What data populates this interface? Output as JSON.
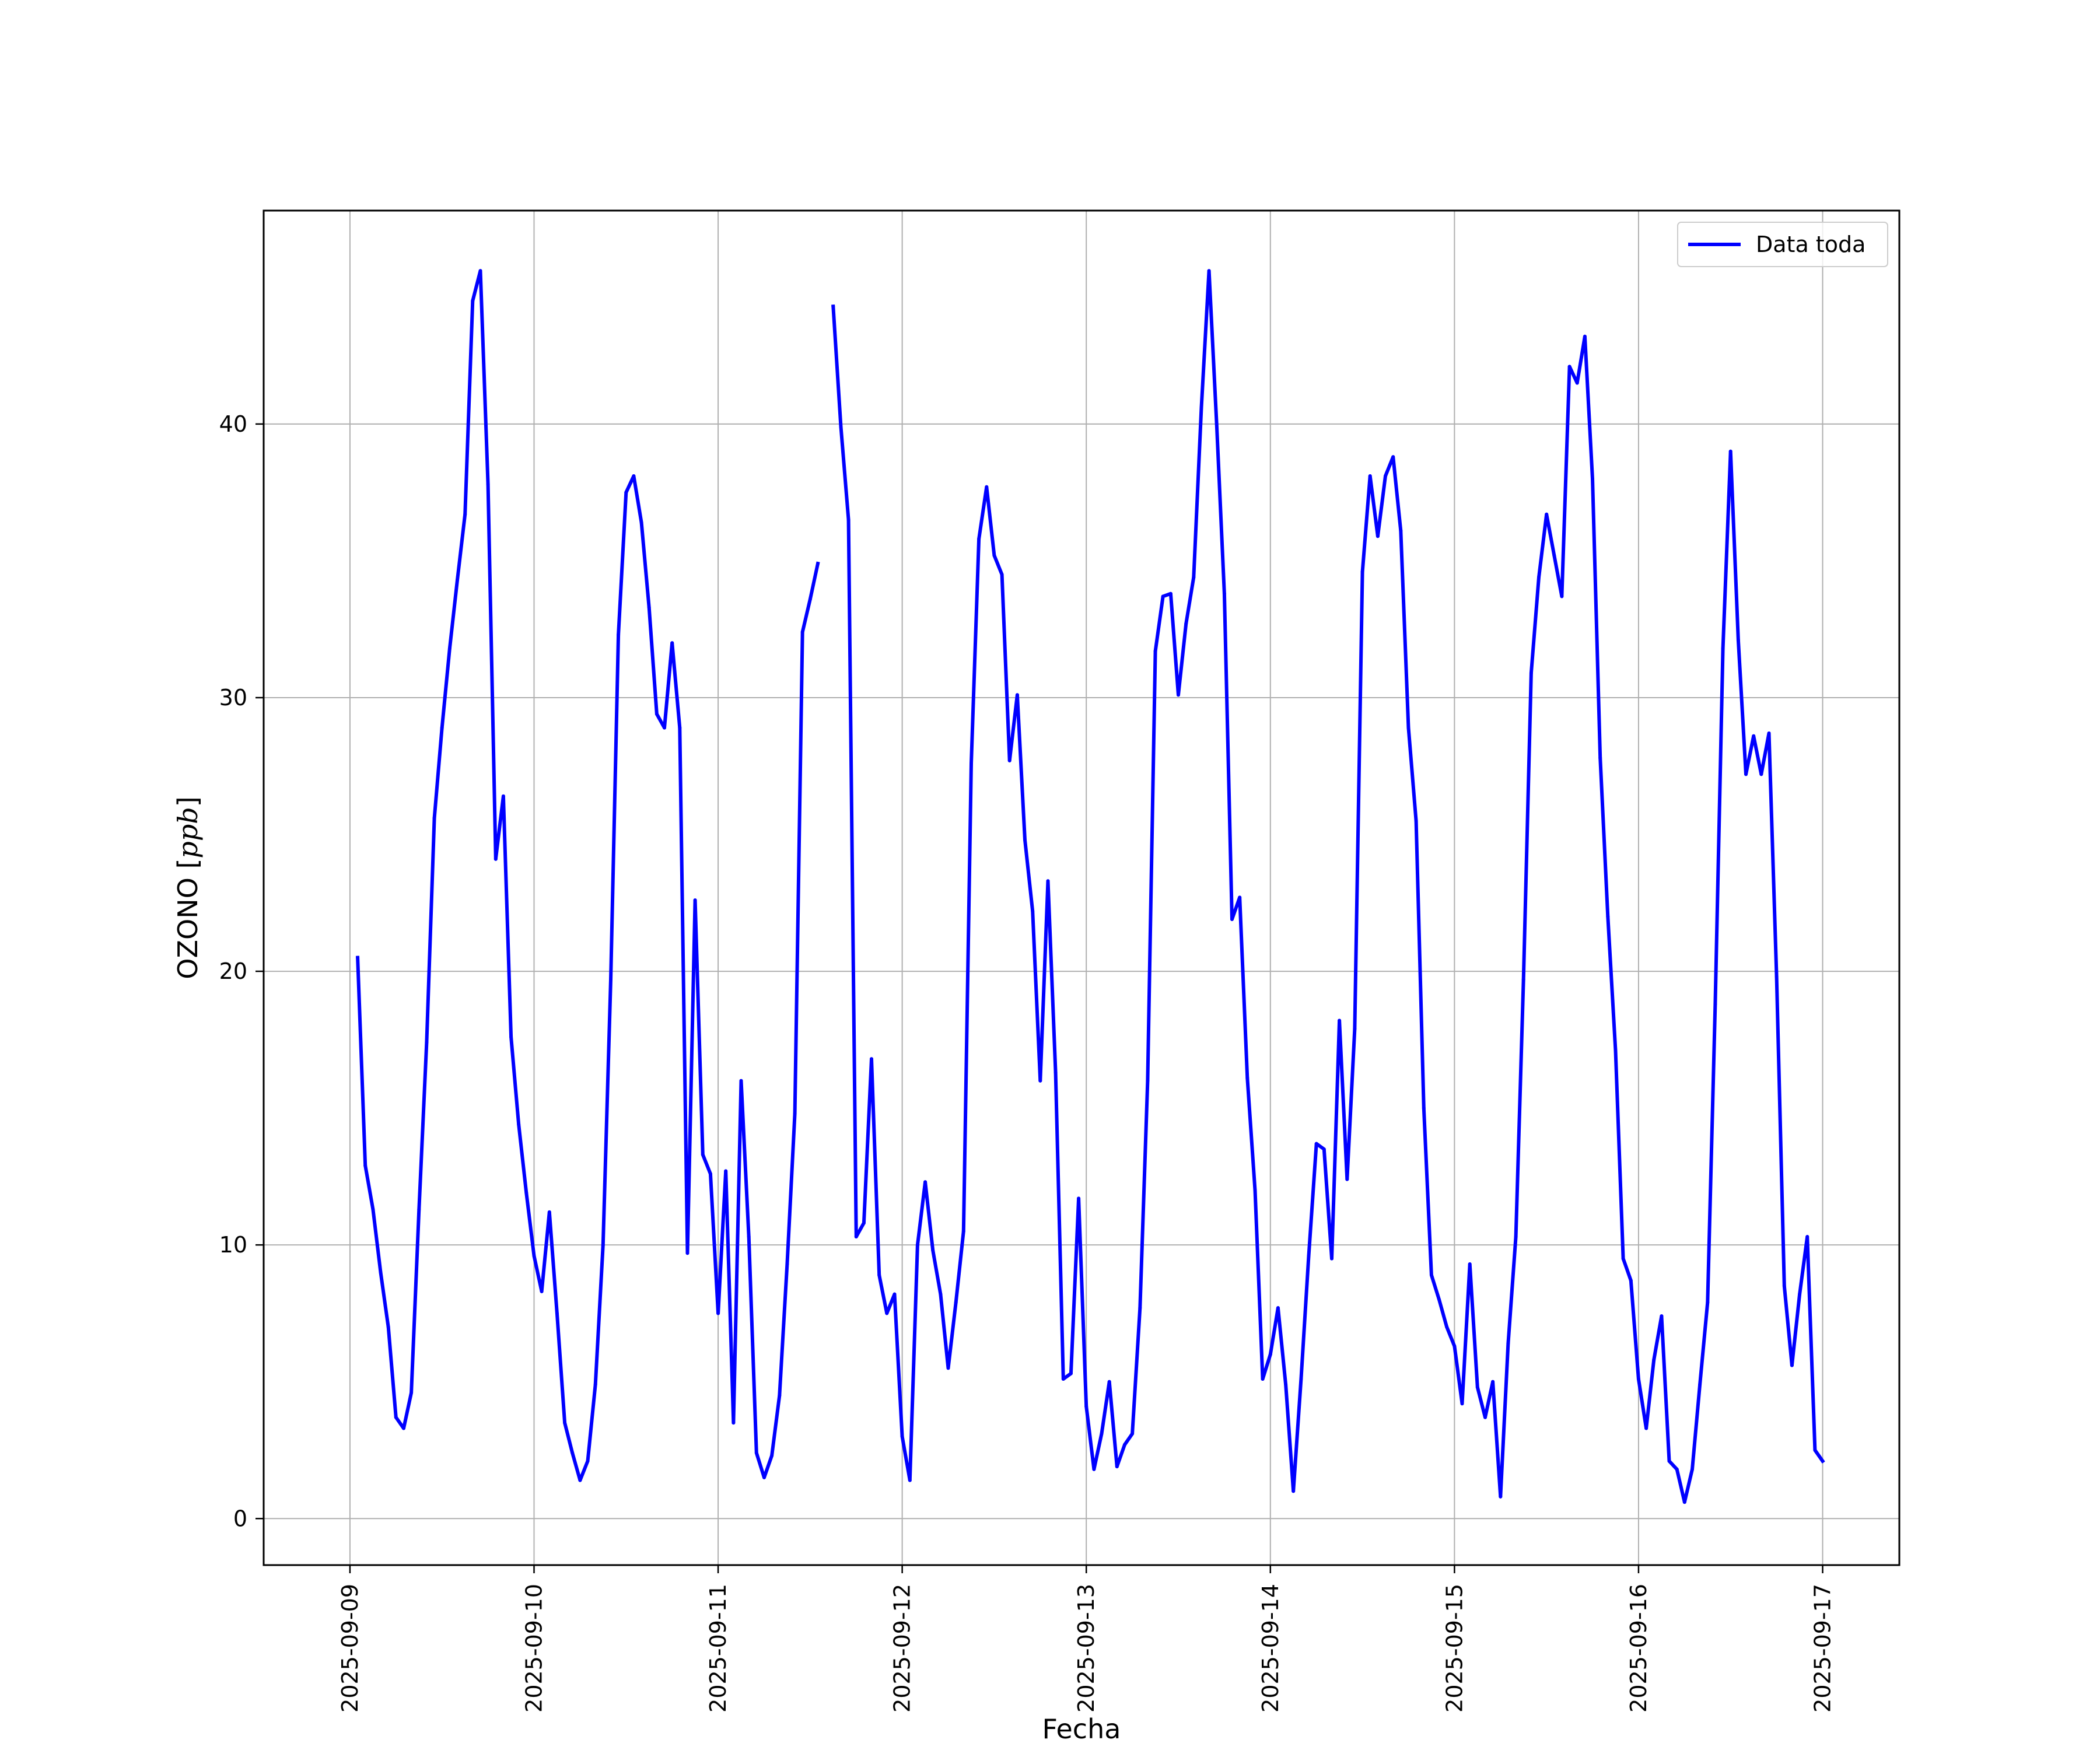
{
  "chart_data": {
    "type": "line",
    "title": "",
    "xlabel": "Fecha",
    "ylabel_main": "OZONO [",
    "ylabel_unit": "ppb",
    "ylabel_close": "]",
    "x_ticks": [
      "2025-09-09",
      "2025-09-10",
      "2025-09-11",
      "2025-09-12",
      "2025-09-13",
      "2025-09-14",
      "2025-09-15",
      "2025-09-16",
      "2025-09-17"
    ],
    "y_ticks": [
      0,
      10,
      20,
      30,
      40
    ],
    "xlim": [
      "2025-09-08T12:45",
      "2025-09-17T10:00"
    ],
    "ylim": [
      -1.7,
      47.8
    ],
    "grid": true,
    "legend_position": "top-right",
    "colors": {
      "series": "#0000ff",
      "grid": "#b0b0b0",
      "axes": "#000000"
    },
    "series": [
      {
        "name": "Data toda",
        "segments": [
          {
            "x": [
              "2025-09-09T01:00",
              "2025-09-09T02:00",
              "2025-09-09T03:00",
              "2025-09-09T04:00",
              "2025-09-09T05:00",
              "2025-09-09T06:00",
              "2025-09-09T07:00",
              "2025-09-09T08:00",
              "2025-09-09T09:00",
              "2025-09-09T10:00",
              "2025-09-09T11:00",
              "2025-09-09T12:00",
              "2025-09-09T13:00",
              "2025-09-09T14:00",
              "2025-09-09T15:00",
              "2025-09-09T16:00",
              "2025-09-09T17:00",
              "2025-09-09T18:00",
              "2025-09-09T19:00",
              "2025-09-09T20:00",
              "2025-09-09T21:00",
              "2025-09-09T22:00",
              "2025-09-09T23:00",
              "2025-09-10T00:00",
              "2025-09-10T01:00",
              "2025-09-10T02:00",
              "2025-09-10T03:00",
              "2025-09-10T04:00",
              "2025-09-10T05:00",
              "2025-09-10T06:00",
              "2025-09-10T07:00",
              "2025-09-10T08:00",
              "2025-09-10T09:00",
              "2025-09-10T10:00",
              "2025-09-10T11:00",
              "2025-09-10T12:00",
              "2025-09-10T13:00",
              "2025-09-10T14:00",
              "2025-09-10T15:00",
              "2025-09-10T16:00",
              "2025-09-10T17:00",
              "2025-09-10T18:00",
              "2025-09-10T19:00",
              "2025-09-10T20:00",
              "2025-09-10T21:00",
              "2025-09-10T22:00",
              "2025-09-10T23:00",
              "2025-09-11T00:00",
              "2025-09-11T01:00",
              "2025-09-11T02:00",
              "2025-09-11T03:00",
              "2025-09-11T04:00",
              "2025-09-11T05:00",
              "2025-09-11T06:00",
              "2025-09-11T07:00",
              "2025-09-11T08:00",
              "2025-09-11T09:00",
              "2025-09-11T10:00",
              "2025-09-11T11:00",
              "2025-09-11T12:00",
              "2025-09-11T13:00"
            ],
            "y": [
              20.5,
              12.9,
              11.3,
              9.0,
              7.0,
              3.7,
              3.3,
              4.6,
              11.3,
              17.4,
              25.6,
              28.9,
              31.8,
              34.3,
              36.7,
              44.5,
              45.6,
              37.8,
              24.1,
              26.4,
              17.6,
              14.4,
              11.9,
              9.6,
              8.3,
              11.2,
              7.5,
              3.5,
              2.4,
              1.4,
              2.1,
              4.9,
              10.0,
              19.7,
              32.3,
              37.5,
              38.1,
              36.4,
              33.3,
              29.4,
              28.9,
              32.0,
              28.9,
              9.7,
              22.6,
              13.3,
              12.6,
              7.5,
              12.7,
              3.5,
              16.0,
              10.3,
              2.4,
              1.5,
              2.3,
              4.5,
              9.3,
              14.8,
              32.4,
              33.6,
              34.9
            ]
          },
          {
            "x": [
              "2025-09-11T15:00",
              "2025-09-11T16:00",
              "2025-09-11T17:00",
              "2025-09-11T18:00",
              "2025-09-11T19:00",
              "2025-09-11T20:00",
              "2025-09-11T21:00",
              "2025-09-11T22:00",
              "2025-09-11T23:00",
              "2025-09-12T00:00",
              "2025-09-12T01:00",
              "2025-09-12T02:00",
              "2025-09-12T03:00",
              "2025-09-12T04:00",
              "2025-09-12T05:00",
              "2025-09-12T06:00",
              "2025-09-12T07:00",
              "2025-09-12T08:00",
              "2025-09-12T09:00",
              "2025-09-12T10:00",
              "2025-09-12T11:00",
              "2025-09-12T12:00",
              "2025-09-12T13:00",
              "2025-09-12T14:00",
              "2025-09-12T15:00",
              "2025-09-12T16:00",
              "2025-09-12T17:00",
              "2025-09-12T18:00",
              "2025-09-12T19:00",
              "2025-09-12T20:00",
              "2025-09-12T21:00",
              "2025-09-12T22:00",
              "2025-09-12T23:00",
              "2025-09-13T00:00",
              "2025-09-13T01:00",
              "2025-09-13T02:00",
              "2025-09-13T03:00",
              "2025-09-13T04:00",
              "2025-09-13T05:00",
              "2025-09-13T06:00",
              "2025-09-13T07:00",
              "2025-09-13T08:00",
              "2025-09-13T09:00",
              "2025-09-13T10:00",
              "2025-09-13T11:00",
              "2025-09-13T12:00",
              "2025-09-13T13:00",
              "2025-09-13T14:00",
              "2025-09-13T15:00",
              "2025-09-13T16:00",
              "2025-09-13T17:00",
              "2025-09-13T18:00",
              "2025-09-13T19:00",
              "2025-09-13T20:00",
              "2025-09-13T21:00",
              "2025-09-13T22:00",
              "2025-09-13T23:00",
              "2025-09-14T00:00",
              "2025-09-14T01:00",
              "2025-09-14T02:00",
              "2025-09-14T03:00",
              "2025-09-14T04:00",
              "2025-09-14T05:00",
              "2025-09-14T06:00",
              "2025-09-14T07:00",
              "2025-09-14T08:00",
              "2025-09-14T09:00",
              "2025-09-14T10:00",
              "2025-09-14T11:00",
              "2025-09-14T12:00",
              "2025-09-14T13:00",
              "2025-09-14T14:00",
              "2025-09-14T15:00",
              "2025-09-14T16:00",
              "2025-09-14T17:00",
              "2025-09-14T18:00",
              "2025-09-14T19:00",
              "2025-09-14T20:00",
              "2025-09-14T21:00",
              "2025-09-14T22:00",
              "2025-09-14T23:00",
              "2025-09-15T00:00",
              "2025-09-15T01:00",
              "2025-09-15T02:00",
              "2025-09-15T03:00",
              "2025-09-15T04:00",
              "2025-09-15T05:00",
              "2025-09-15T06:00",
              "2025-09-15T07:00",
              "2025-09-15T08:00",
              "2025-09-15T09:00",
              "2025-09-15T10:00",
              "2025-09-15T11:00",
              "2025-09-15T12:00",
              "2025-09-15T13:00",
              "2025-09-15T14:00",
              "2025-09-15T15:00",
              "2025-09-15T16:00",
              "2025-09-15T17:00",
              "2025-09-15T18:00",
              "2025-09-15T19:00",
              "2025-09-15T20:00",
              "2025-09-15T21:00",
              "2025-09-15T22:00",
              "2025-09-15T23:00",
              "2025-09-16T00:00",
              "2025-09-16T01:00",
              "2025-09-16T02:00",
              "2025-09-16T03:00",
              "2025-09-16T04:00",
              "2025-09-16T05:00",
              "2025-09-16T06:00",
              "2025-09-16T07:00",
              "2025-09-16T08:00",
              "2025-09-16T09:00",
              "2025-09-16T10:00",
              "2025-09-16T11:00",
              "2025-09-16T12:00",
              "2025-09-16T13:00",
              "2025-09-16T14:00",
              "2025-09-16T15:00",
              "2025-09-16T16:00",
              "2025-09-16T17:00",
              "2025-09-16T18:00",
              "2025-09-16T19:00",
              "2025-09-16T20:00",
              "2025-09-16T21:00",
              "2025-09-16T22:00",
              "2025-09-16T23:00",
              "2025-09-17T00:00"
            ],
            "y": [
              44.3,
              39.9,
              36.5,
              10.3,
              10.8,
              16.8,
              8.9,
              7.5,
              8.2,
              3.0,
              1.4,
              10.0,
              12.3,
              9.8,
              8.2,
              5.5,
              7.9,
              10.5,
              27.6,
              35.8,
              37.7,
              35.2,
              34.5,
              27.7,
              30.1,
              24.8,
              22.2,
              16.0,
              23.3,
              16.3,
              5.1,
              5.3,
              11.7,
              4.1,
              1.8,
              3.1,
              5.0,
              1.9,
              2.7,
              3.1,
              7.7,
              16.0,
              31.7,
              33.7,
              33.8,
              30.1,
              32.7,
              34.4,
              40.6,
              45.6,
              40.0,
              33.8,
              21.9,
              22.7,
              16.1,
              12.0,
              5.1,
              6.0,
              7.7,
              4.9,
              1.0,
              5.1,
              9.6,
              13.7,
              13.5,
              9.5,
              18.2,
              12.4,
              17.9,
              34.6,
              38.1,
              35.9,
              38.1,
              38.8,
              36.1,
              28.9,
              25.5,
              15.0,
              8.9,
              8.0,
              7.0,
              6.3,
              4.2,
              9.3,
              4.8,
              3.7,
              5.0,
              0.8,
              6.4,
              10.3,
              19.7,
              30.9,
              34.4,
              36.7,
              35.2,
              33.7,
              42.1,
              41.5,
              43.2,
              38.0,
              27.8,
              22.0,
              17.1,
              9.5,
              8.7,
              5.1,
              3.3,
              5.8,
              7.4,
              2.1,
              1.8,
              0.6,
              1.8,
              4.9,
              7.9,
              18.8,
              31.8,
              39.0,
              32.1,
              27.2,
              28.6,
              27.2,
              28.7,
              19.8,
              8.5,
              5.6,
              8.2,
              10.3,
              2.5,
              2.1
            ]
          }
        ]
      }
    ]
  }
}
